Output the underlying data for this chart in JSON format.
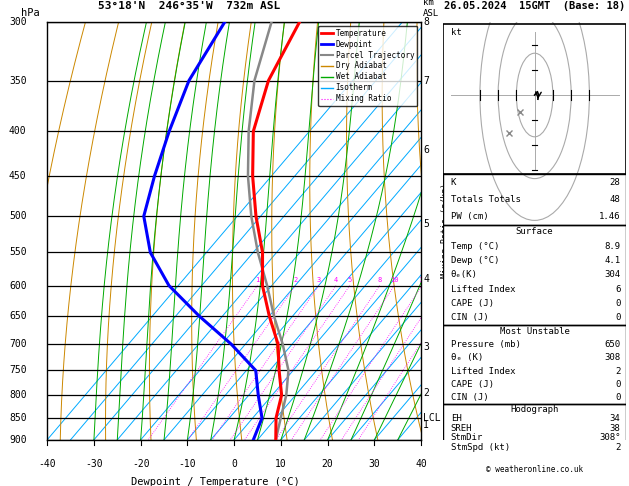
{
  "title_left": "53°18'N  246°35'W  732m ASL",
  "title_right": "26.05.2024  15GMT  (Base: 18)",
  "xlabel": "Dewpoint / Temperature (°C)",
  "pressure_levels": [
    300,
    350,
    400,
    450,
    500,
    550,
    600,
    650,
    700,
    750,
    800,
    850,
    900
  ],
  "temp_range": [
    -40,
    40
  ],
  "km_ticks": [
    1,
    2,
    3,
    4,
    5,
    6,
    7,
    8
  ],
  "km_pressures": [
    865,
    795,
    705,
    590,
    510,
    420,
    350,
    300
  ],
  "lcl_pressure": 850,
  "temperature_profile": {
    "temps": [
      8.9,
      5,
      2,
      -3,
      -8,
      -15,
      -22,
      -28,
      -36,
      -44,
      -52,
      -58,
      -62
    ],
    "pressures": [
      900,
      850,
      800,
      750,
      700,
      650,
      600,
      550,
      500,
      450,
      400,
      350,
      300
    ]
  },
  "dewpoint_profile": {
    "temps": [
      4.1,
      2,
      -3,
      -8,
      -18,
      -30,
      -42,
      -52,
      -60,
      -65,
      -70,
      -75,
      -78
    ],
    "pressures": [
      900,
      850,
      800,
      750,
      700,
      650,
      600,
      550,
      500,
      450,
      400,
      350,
      300
    ]
  },
  "parcel_profile": {
    "temps": [
      8.9,
      6,
      3,
      -1,
      -7,
      -14,
      -21,
      -29,
      -37,
      -45,
      -53,
      -61,
      -68
    ],
    "pressures": [
      900,
      850,
      800,
      750,
      700,
      650,
      600,
      550,
      500,
      450,
      400,
      350,
      300
    ]
  },
  "colors": {
    "temperature": "#ff0000",
    "dewpoint": "#0000ff",
    "parcel": "#888888",
    "dry_adiabat": "#cc8800",
    "wet_adiabat": "#00aa00",
    "isotherm": "#00aaff",
    "mixing_ratio": "#ff00ff",
    "background": "#ffffff",
    "grid": "#000000"
  },
  "right_panel": {
    "k_index": 28,
    "totals_totals": 48,
    "pw_cm": 1.46,
    "surface_temp": 8.9,
    "surface_dewp": 4.1,
    "theta_e_surface": 304,
    "lifted_index_surface": 6,
    "cape_surface": 0,
    "cin_surface": 0,
    "mu_pressure": 650,
    "mu_theta_e": 308,
    "mu_lifted_index": 2,
    "mu_cape": 0,
    "mu_cin": 0,
    "eh": 34,
    "sreh": 38,
    "stm_dir": 308,
    "stm_spd": 2
  }
}
